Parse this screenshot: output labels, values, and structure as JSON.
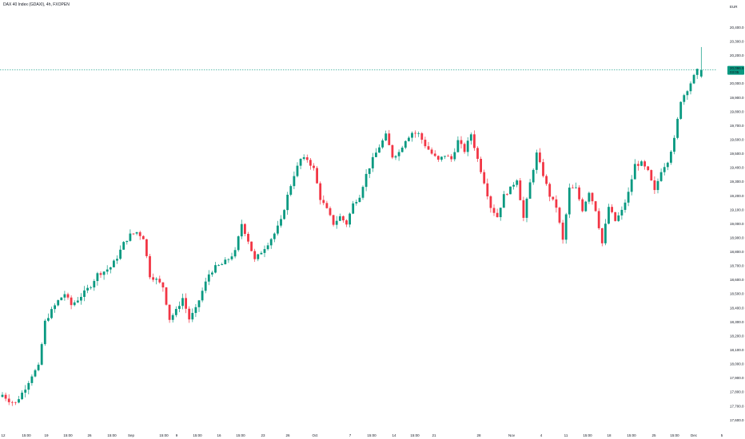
{
  "title": "DAX 40 Index (GDAXI), 4h, FXOPEN",
  "currency": "EUR",
  "colors": {
    "up": "#089981",
    "down": "#f23645",
    "last_line": "#089981",
    "axis_text": "#131722"
  },
  "last_price": {
    "value": 20096.5,
    "label": "20,096.5",
    "countdown": "03:05"
  },
  "chart_data": {
    "type": "candlestick",
    "title": "DAX 40 Index (GDAXI), 4h, FXOPEN",
    "ylim": [
      17550,
      20550
    ],
    "y_ticks": [
      "17,600.0",
      "17,700.0",
      "17,800.0",
      "17,900.0",
      "18,000.0",
      "18,100.0",
      "18,200.0",
      "18,300.0",
      "18,400.0",
      "18,500.0",
      "18,600.0",
      "18,700.0",
      "18,800.0",
      "18,900.0",
      "19,000.0",
      "19,100.0",
      "19,200.0",
      "19,300.0",
      "19,400.0",
      "19,500.0",
      "19,600.0",
      "19,700.0",
      "19,800.0",
      "19,900.0",
      "20,000.0",
      "20,100.0",
      "20,200.0",
      "20,300.0",
      "20,400.0"
    ],
    "x_ticks": [
      "12",
      "15:00",
      "19",
      "15:00",
      "26",
      "15:00",
      "Sep",
      "15:00",
      "9",
      "15:00",
      "16",
      "15:00",
      "23",
      "26",
      "Oct",
      "7",
      "15:00",
      "14",
      "15:00",
      "21",
      "28",
      "Nov",
      "4",
      "11",
      "15:00",
      "18",
      "15:00",
      "25",
      "15:00",
      "Dec",
      "5"
    ],
    "waypoints": [
      [
        0,
        17780
      ],
      [
        2,
        17740
      ],
      [
        4,
        17720
      ],
      [
        7,
        17830
      ],
      [
        9,
        17920
      ],
      [
        11,
        17980
      ],
      [
        13,
        18300
      ],
      [
        15,
        18380
      ],
      [
        17,
        18450
      ],
      [
        19,
        18500
      ],
      [
        21,
        18420
      ],
      [
        23,
        18460
      ],
      [
        25,
        18510
      ],
      [
        27,
        18560
      ],
      [
        29,
        18640
      ],
      [
        31,
        18660
      ],
      [
        33,
        18690
      ],
      [
        35,
        18760
      ],
      [
        37,
        18860
      ],
      [
        39,
        18920
      ],
      [
        41,
        18940
      ],
      [
        43,
        18900
      ],
      [
        45,
        18630
      ],
      [
        47,
        18600
      ],
      [
        49,
        18550
      ],
      [
        51,
        18320
      ],
      [
        53,
        18380
      ],
      [
        55,
        18470
      ],
      [
        57,
        18320
      ],
      [
        59,
        18390
      ],
      [
        61,
        18520
      ],
      [
        63,
        18640
      ],
      [
        65,
        18690
      ],
      [
        67,
        18710
      ],
      [
        69,
        18750
      ],
      [
        71,
        18800
      ],
      [
        73,
        19000
      ],
      [
        75,
        18880
      ],
      [
        77,
        18740
      ],
      [
        79,
        18800
      ],
      [
        81,
        18860
      ],
      [
        83,
        18930
      ],
      [
        85,
        19020
      ],
      [
        87,
        19200
      ],
      [
        89,
        19350
      ],
      [
        91,
        19460
      ],
      [
        93,
        19460
      ],
      [
        95,
        19390
      ],
      [
        97,
        19180
      ],
      [
        99,
        19100
      ],
      [
        101,
        19000
      ],
      [
        103,
        19050
      ],
      [
        105,
        19000
      ],
      [
        107,
        19140
      ],
      [
        109,
        19200
      ],
      [
        111,
        19350
      ],
      [
        113,
        19460
      ],
      [
        115,
        19550
      ],
      [
        117,
        19630
      ],
      [
        119,
        19480
      ],
      [
        121,
        19510
      ],
      [
        123,
        19600
      ],
      [
        125,
        19650
      ],
      [
        127,
        19640
      ],
      [
        129,
        19560
      ],
      [
        131,
        19500
      ],
      [
        133,
        19450
      ],
      [
        135,
        19490
      ],
      [
        137,
        19460
      ],
      [
        139,
        19590
      ],
      [
        141,
        19520
      ],
      [
        143,
        19640
      ],
      [
        145,
        19460
      ],
      [
        147,
        19300
      ],
      [
        149,
        19120
      ],
      [
        151,
        19050
      ],
      [
        153,
        19200
      ],
      [
        155,
        19250
      ],
      [
        157,
        19320
      ],
      [
        159,
        19040
      ],
      [
        161,
        19290
      ],
      [
        163,
        19500
      ],
      [
        165,
        19350
      ],
      [
        167,
        19200
      ],
      [
        169,
        19120
      ],
      [
        171,
        18880
      ],
      [
        173,
        19250
      ],
      [
        175,
        19250
      ],
      [
        177,
        19100
      ],
      [
        179,
        19230
      ],
      [
        181,
        19100
      ],
      [
        183,
        18860
      ],
      [
        185,
        19120
      ],
      [
        187,
        19020
      ],
      [
        189,
        19090
      ],
      [
        191,
        19220
      ],
      [
        193,
        19420
      ],
      [
        195,
        19430
      ],
      [
        197,
        19370
      ],
      [
        199,
        19230
      ],
      [
        201,
        19380
      ],
      [
        203,
        19450
      ],
      [
        205,
        19600
      ],
      [
        207,
        19880
      ],
      [
        209,
        19960
      ],
      [
        211,
        20050
      ],
      [
        212,
        20090
      ]
    ],
    "last_candle": {
      "open": 20050,
      "high": 20260,
      "low": 20040,
      "close": 20096.5
    }
  }
}
